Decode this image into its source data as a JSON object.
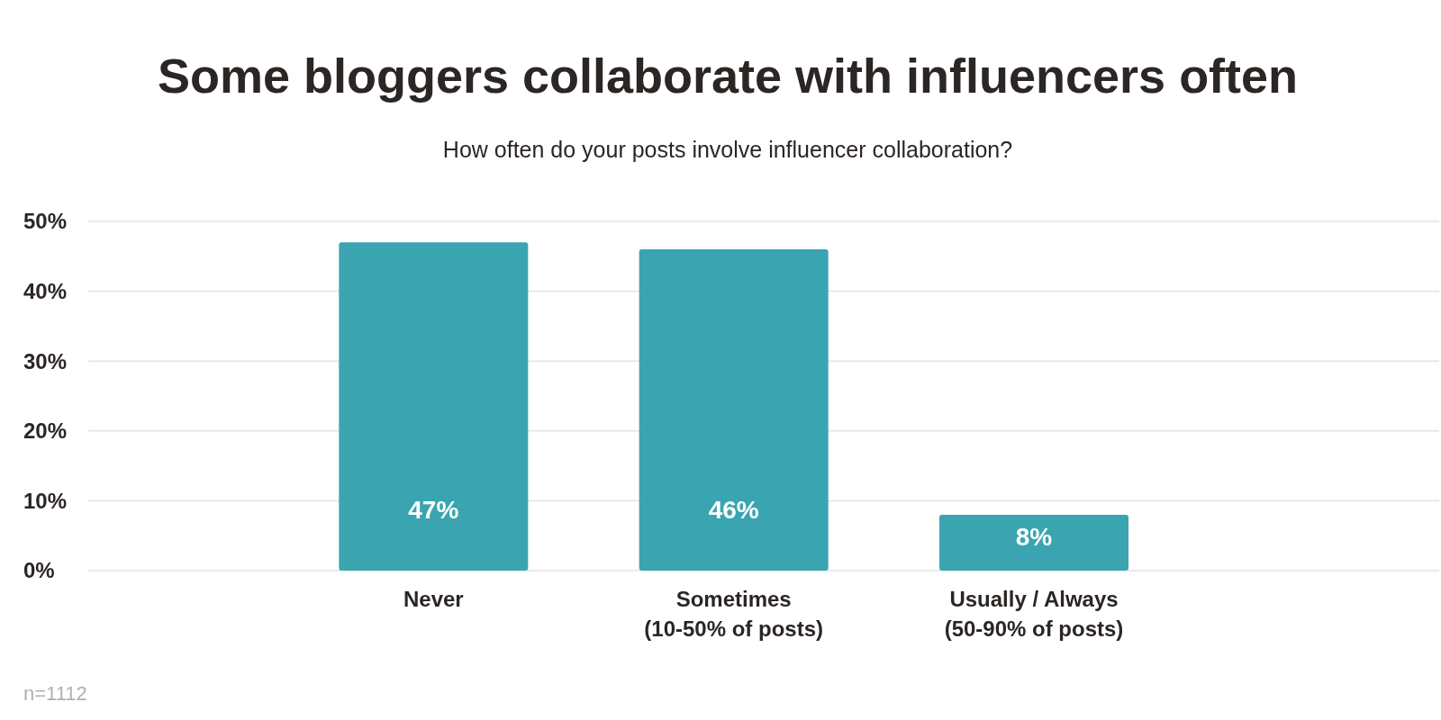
{
  "chart_data": {
    "type": "bar",
    "title": "Some bloggers collaborate with influencers often",
    "subtitle": "How often do your posts involve influencer collaboration?",
    "categories": [
      "Never",
      "Sometimes\n(10-50% of posts)",
      "Usually / Always\n(50-90% of posts)"
    ],
    "values": [
      47,
      46,
      8
    ],
    "color": "#3aa5b1",
    "ylim": [
      0,
      50
    ],
    "yticks": [
      {
        "value": 0,
        "label": "0%"
      },
      {
        "value": 10,
        "label": "10%"
      },
      {
        "value": 20,
        "label": "20%"
      },
      {
        "value": 30,
        "label": "30%"
      },
      {
        "value": 40,
        "label": "40%"
      },
      {
        "value": 50,
        "label": "50%"
      }
    ],
    "grid": "y",
    "value_labels": [
      "47%",
      "46%",
      "8%"
    ],
    "annotations": [
      "n=1112"
    ]
  }
}
